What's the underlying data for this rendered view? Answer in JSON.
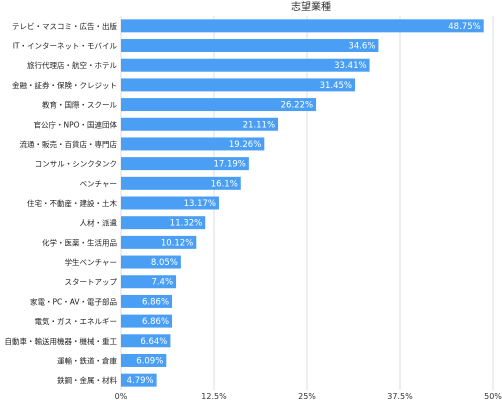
{
  "chart_data": {
    "type": "bar",
    "orientation": "horizontal",
    "title": "志望業種",
    "categories": [
      "テレビ・マスコミ・広告・出版",
      "IT・インターネット・モバイル",
      "旅行代理店・航空・ホテル",
      "金融・証券・保険・クレジット",
      "教育・国際・スクール",
      "官公庁・NPO・国連団体",
      "流通・販売・百貨店・専門店",
      "コンサル・シンクタンク",
      "ベンチャー",
      "住宅・不動産・建設・土木",
      "人材・派遣",
      "化学・医薬・生活用品",
      "学生ベンチャー",
      "スタートアップ",
      "家電・PC・AV・電子部品",
      "電気・ガス・エネルギー",
      "自動車・輸送用機器・機械・重工",
      "運輸・鉄道・倉庫",
      "鉄鋼・金属・材料"
    ],
    "values": [
      48.75,
      34.6,
      33.41,
      31.45,
      26.22,
      21.11,
      19.26,
      17.19,
      16.1,
      13.17,
      11.32,
      10.12,
      8.05,
      7.4,
      6.86,
      6.86,
      6.64,
      6.09,
      4.79
    ],
    "value_labels": [
      "48.75%",
      "34.6%",
      "33.41%",
      "31.45%",
      "26.22%",
      "21.11%",
      "19.26%",
      "17.19%",
      "16.1%",
      "13.17%",
      "11.32%",
      "10.12%",
      "8.05%",
      "7.4%",
      "6.86%",
      "6.86%",
      "6.64%",
      "6.09%",
      "4.79%"
    ],
    "xlim": [
      0,
      50
    ],
    "xticks": [
      0,
      12.5,
      25,
      37.5,
      50
    ],
    "xtick_labels": [
      "0%",
      "12.5%",
      "25%",
      "37.5%",
      "50%"
    ],
    "grid": true,
    "legend": "none",
    "bar_color": "#4a9ff5",
    "grid_color": "#dddddd"
  }
}
